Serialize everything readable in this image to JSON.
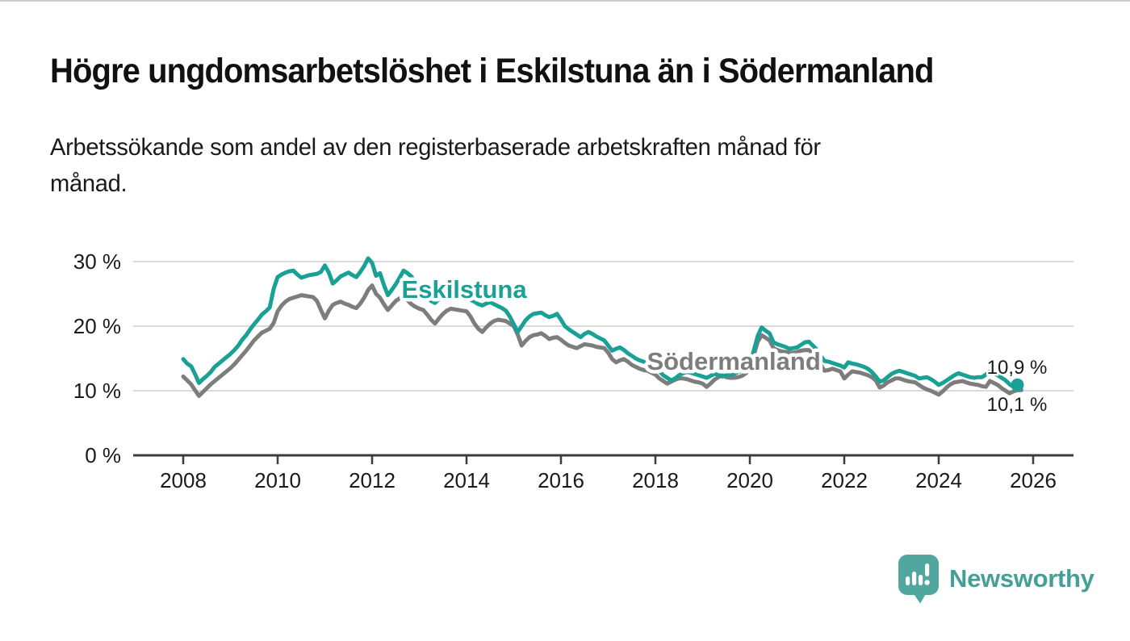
{
  "title": "Högre ungdomsarbetslöshet i Eskilstuna än i Södermanland",
  "subtitle_lines": [
    "Arbetssökande som andel av den registerbaserade arbetskraften månad för",
    "månad."
  ],
  "branding": {
    "logo_text": "Newsworthy",
    "logo_icon": "newsworthy-bubble-chart-icon",
    "logo_color": "#4FA79E",
    "text_color": "#44A096"
  },
  "chart_data": {
    "type": "line",
    "title": "Högre ungdomsarbetslöshet i Eskilstuna än i Södermanland",
    "xlabel": "",
    "ylabel": "%",
    "grid": true,
    "legend_position": "inline-labels",
    "xlim": [
      2006.95,
      2026.85
    ],
    "ylim": [
      0,
      31.5
    ],
    "x_ticks": [
      2008,
      2010,
      2012,
      2014,
      2016,
      2018,
      2020,
      2022,
      2024,
      2026
    ],
    "y_ticks": [
      {
        "value": 0,
        "label": "0 %"
      },
      {
        "value": 10,
        "label": "10 %"
      },
      {
        "value": 20,
        "label": "20 %"
      },
      {
        "value": 30,
        "label": "30 %"
      }
    ],
    "colors": {
      "grid": "#DADADA",
      "axis": "#3C3C3C",
      "text": "#1a1a1a"
    },
    "series": [
      {
        "name": "Södermanland",
        "color": "#7D7D7D",
        "end_label": "10,1 %",
        "end_label_anchor": {
          "x": 2025.02,
          "y": 8.0
        },
        "label_anchor": {
          "x": 2019.66,
          "y": 14.6
        },
        "end_dot": false,
        "start_year": 2008,
        "step_months": 1,
        "values": [
          12.2,
          11.6,
          11.0,
          10.1,
          9.2,
          9.8,
          10.4,
          11.0,
          11.5,
          12.0,
          12.5,
          13.0,
          13.5,
          14.1,
          14.8,
          15.5,
          16.2,
          17.0,
          17.8,
          18.4,
          19.0,
          19.3,
          19.6,
          20.5,
          22.3,
          23.2,
          23.8,
          24.2,
          24.4,
          24.6,
          24.8,
          24.7,
          24.6,
          24.5,
          23.9,
          22.5,
          21.2,
          22.4,
          23.3,
          23.6,
          23.8,
          23.5,
          23.3,
          23.0,
          22.8,
          23.5,
          24.4,
          25.6,
          26.3,
          25.0,
          24.4,
          23.4,
          22.5,
          23.2,
          23.9,
          24.3,
          24.6,
          24.0,
          23.4,
          23.0,
          22.7,
          22.5,
          21.8,
          21.0,
          20.4,
          21.2,
          21.9,
          22.4,
          22.7,
          22.6,
          22.5,
          22.4,
          22.3,
          21.5,
          20.4,
          19.6,
          19.1,
          19.8,
          20.4,
          20.8,
          21.0,
          20.9,
          20.8,
          20.4,
          20.0,
          18.7,
          17.0,
          17.7,
          18.3,
          18.6,
          18.7,
          18.9,
          18.5,
          18.0,
          18.2,
          18.3,
          17.9,
          17.4,
          17.0,
          16.8,
          16.6,
          16.9,
          17.2,
          17.1,
          17.0,
          16.8,
          16.7,
          16.6,
          15.9,
          14.9,
          14.4,
          14.7,
          14.9,
          14.5,
          14.0,
          13.7,
          13.4,
          13.2,
          13.1,
          12.8,
          12.5,
          11.9,
          11.5,
          11.1,
          11.4,
          11.7,
          11.9,
          11.9,
          11.8,
          11.6,
          11.4,
          11.3,
          11.1,
          10.6,
          11.1,
          11.7,
          12.1,
          12.4,
          12.1,
          12.0,
          12.0,
          12.1,
          12.3,
          12.7,
          13.5,
          15.5,
          17.6,
          18.6,
          18.2,
          17.8,
          16.6,
          16.3,
          16.1,
          16.0,
          15.9,
          15.9,
          16.0,
          16.2,
          16.3,
          16.3,
          15.7,
          15.0,
          14.0,
          13.1,
          13.2,
          13.4,
          13.2,
          13.0,
          11.9,
          12.5,
          13.0,
          12.9,
          12.8,
          12.6,
          12.4,
          12.1,
          11.6,
          10.5,
          10.8,
          11.3,
          11.6,
          11.9,
          11.9,
          11.7,
          11.5,
          11.4,
          11.3,
          10.9,
          10.5,
          10.2,
          10.0,
          9.7,
          9.4,
          9.9,
          10.5,
          11.0,
          11.3,
          11.4,
          11.5,
          11.3,
          11.1,
          11.0,
          10.9,
          10.7,
          10.6,
          11.5,
          11.2,
          10.9,
          10.4,
          10.0,
          9.6,
          9.9,
          10.1,
          10.1
        ]
      },
      {
        "name": "Eskilstuna",
        "color": "#19A196",
        "end_label": "10,9 %",
        "end_label_anchor": {
          "x": 2025.02,
          "y": 13.75
        },
        "label_anchor": {
          "x": 2013.95,
          "y": 25.75
        },
        "end_dot": true,
        "start_year": 2008,
        "step_months": 1,
        "values": [
          14.9,
          14.2,
          13.8,
          12.6,
          11.2,
          11.8,
          12.3,
          12.9,
          13.7,
          14.2,
          14.7,
          15.2,
          15.7,
          16.3,
          17.0,
          17.9,
          18.6,
          19.5,
          20.3,
          21.0,
          21.8,
          22.3,
          22.9,
          25.8,
          27.6,
          28.0,
          28.3,
          28.5,
          28.6,
          28.0,
          27.5,
          27.7,
          27.9,
          28.0,
          28.1,
          28.4,
          29.4,
          28.3,
          26.6,
          27.1,
          27.7,
          28.0,
          28.3,
          27.9,
          27.6,
          28.4,
          29.3,
          30.5,
          29.8,
          27.8,
          28.2,
          26.4,
          24.8,
          25.6,
          26.5,
          27.5,
          28.6,
          28.2,
          27.7,
          26.8,
          26.0,
          25.2,
          24.5,
          23.9,
          23.6,
          24.2,
          24.8,
          25.2,
          25.5,
          25.3,
          25.0,
          24.8,
          24.5,
          24.1,
          23.8,
          23.4,
          23.2,
          23.5,
          23.7,
          23.4,
          23.1,
          22.8,
          22.4,
          21.5,
          20.3,
          19.1,
          20.0,
          20.9,
          21.5,
          21.9,
          22.0,
          22.1,
          21.7,
          21.4,
          21.6,
          21.9,
          21.0,
          20.0,
          19.5,
          19.1,
          18.7,
          18.3,
          18.8,
          19.1,
          18.8,
          18.4,
          18.1,
          17.8,
          17.0,
          16.2,
          16.5,
          16.7,
          16.3,
          15.8,
          15.4,
          15.0,
          14.7,
          14.5,
          14.3,
          14.1,
          13.6,
          13.0,
          12.4,
          12.0,
          11.6,
          11.9,
          12.4,
          12.7,
          12.9,
          12.8,
          12.6,
          12.4,
          12.2,
          12.0,
          12.3,
          12.6,
          12.5,
          12.2,
          12.4,
          12.5,
          12.6,
          12.9,
          13.1,
          13.5,
          14.2,
          16.2,
          18.5,
          19.8,
          19.3,
          18.9,
          17.5,
          17.2,
          17.0,
          16.8,
          16.5,
          16.6,
          16.7,
          17.1,
          17.5,
          17.6,
          17.0,
          16.4,
          15.4,
          14.6,
          14.5,
          14.3,
          14.1,
          13.9,
          13.6,
          14.4,
          14.2,
          14.1,
          13.9,
          13.7,
          13.4,
          12.9,
          12.2,
          11.4,
          11.6,
          12.1,
          12.6,
          12.9,
          13.1,
          12.9,
          12.7,
          12.5,
          12.3,
          11.9,
          12.0,
          12.1,
          11.8,
          11.4,
          10.9,
          11.2,
          11.6,
          12.0,
          12.4,
          12.7,
          12.5,
          12.3,
          12.1,
          12.0,
          12.1,
          12.1,
          12.5,
          13.0,
          12.7,
          12.4,
          12.0,
          11.6,
          11.0,
          10.6,
          10.9
        ]
      }
    ]
  }
}
